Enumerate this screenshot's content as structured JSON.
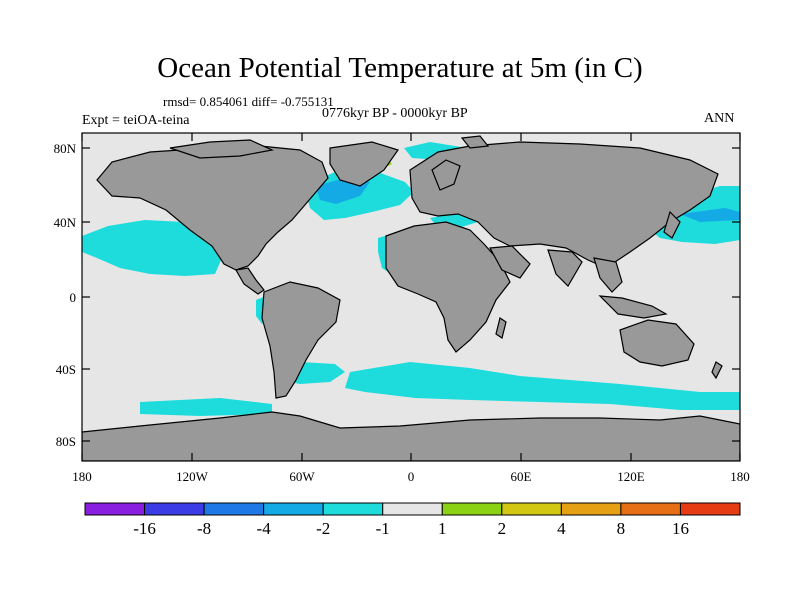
{
  "title": "Ocean Potential Temperature at 5m (in C)",
  "stats_line": "rmsd= 0.854061 diff= -0.755131",
  "experiment": "Expt = teiOA-teina",
  "period": "0776kyr BP - 0000kyr BP",
  "season": "ANN",
  "lat_ticks": [
    "80N",
    "40N",
    "0",
    "40S",
    "80S"
  ],
  "lon_ticks": [
    "180",
    "120W",
    "60W",
    "0",
    "60E",
    "120E",
    "180"
  ],
  "colorbar": {
    "labels": [
      "-16",
      "-8",
      "-4",
      "-2",
      "-1",
      "1",
      "2",
      "4",
      "8",
      "16"
    ],
    "colors": [
      "#8a1ee0",
      "#3c3ce6",
      "#1e78e6",
      "#14aae6",
      "#1edcdc",
      "#e6e6e6",
      "#8cd214",
      "#d2c814",
      "#e6a014",
      "#e66e14",
      "#e63c14"
    ]
  },
  "colors": {
    "ocean": "#e6e6e6",
    "land": "#999999",
    "cool_anomaly": "#1edcdc",
    "strong_cool": "#14aae6",
    "warm_anomaly": "#8cd214"
  }
}
